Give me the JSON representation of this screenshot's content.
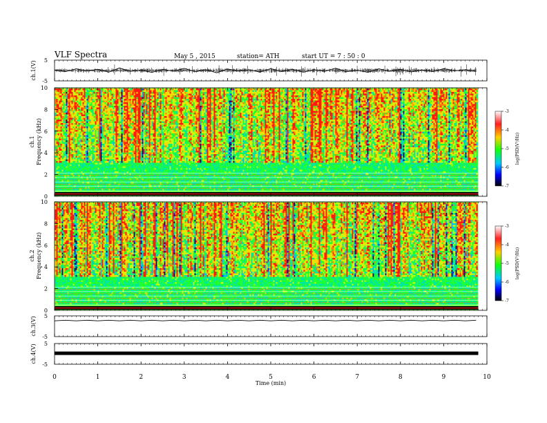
{
  "header": {
    "title": "VLF Spectra",
    "date": "May 5 , 2015",
    "station": "station= ATH",
    "start": "start UT = 7 : 50 : 0"
  },
  "colorbar": {
    "label": "log(PSD(V²/Hz)",
    "ticks": [
      "-3",
      "-4",
      "-5",
      "-6",
      "-7"
    ],
    "colors": [
      "#ffffff",
      "#ff2020",
      "#ffd000",
      "#10ff10",
      "#0080ff",
      "#0000ff",
      "#000000"
    ]
  },
  "chart_data": [
    {
      "type": "line",
      "ylabel": "ch.1(V)",
      "ylim": [
        -5,
        5
      ],
      "yticks": [
        "5",
        "-5"
      ],
      "x": [
        0,
        0.25,
        0.5,
        0.75,
        1,
        1.25,
        1.5,
        1.75,
        2,
        2.25,
        2.5,
        2.75,
        3,
        3.25,
        3.5,
        3.75,
        4,
        4.25,
        4.5,
        4.75,
        5,
        5.25,
        5.5,
        5.75,
        6,
        6.25,
        6.5,
        6.75,
        7,
        7.25,
        7.5,
        7.75,
        8,
        8.25,
        8.5,
        8.75,
        9,
        9.25,
        9.5,
        9.75
      ],
      "values": [
        0.3,
        -0.5,
        0.8,
        -0.2,
        0.6,
        -0.8,
        1.2,
        -0.4,
        0.2,
        -0.9,
        0.5,
        -0.3,
        1.0,
        -0.6,
        0.4,
        -1.1,
        0.7,
        -0.2,
        0.3,
        -0.7,
        0.9,
        -0.5,
        0.6,
        -0.8,
        0.4,
        -0.3,
        1.1,
        -0.6,
        0.2,
        -0.9,
        0.8,
        -0.4,
        0.5,
        -0.7,
        0.3,
        -0.5,
        0.9,
        -0.2,
        0.4,
        -0.3
      ]
    },
    {
      "type": "heatmap",
      "ylabel": "ch.1",
      "ylabel2": "Frequency (kHz)",
      "ylim": [
        0,
        10
      ],
      "yticks": [
        "0",
        "2",
        "4",
        "6",
        "8",
        "10"
      ],
      "xlim": [
        0,
        10
      ]
    },
    {
      "type": "heatmap",
      "ylabel": "ch.2",
      "ylabel2": "Frequency (kHz)",
      "ylim": [
        0,
        10
      ],
      "yticks": [
        "0",
        "2",
        "4",
        "6",
        "8",
        "10"
      ],
      "xlim": [
        0,
        10
      ]
    },
    {
      "type": "line",
      "ylabel": "ch.3(V)",
      "ylim": [
        -5,
        5
      ],
      "yticks": [
        "5",
        "-5"
      ],
      "x": [
        0,
        0.25,
        0.5,
        0.75,
        1,
        1.25,
        1.5,
        1.75,
        2,
        2.25,
        2.5,
        2.75,
        3,
        3.25,
        3.5,
        3.75,
        4,
        4.25,
        4.5,
        4.75,
        5,
        5.25,
        5.5,
        5.75,
        6,
        6.25,
        6.5,
        6.75,
        7,
        7.25,
        7.5,
        7.75,
        8,
        8.25,
        8.5,
        8.75,
        9,
        9.25,
        9.5,
        9.75
      ],
      "values": [
        2.6,
        2.9,
        2.6,
        2.9,
        2.6,
        2.9,
        2.6,
        2.9,
        2.6,
        2.9,
        2.6,
        2.9,
        2.6,
        2.9,
        2.6,
        2.9,
        2.6,
        2.9,
        2.6,
        2.9,
        2.6,
        2.9,
        2.6,
        2.9,
        2.6,
        2.9,
        2.6,
        2.9,
        2.6,
        2.9,
        2.6,
        2.9,
        2.6,
        2.9,
        2.6,
        2.9,
        2.6,
        2.9,
        2.6,
        2.9
      ]
    },
    {
      "type": "line",
      "ylabel": "ch.4(V)",
      "ylim": [
        -5,
        5
      ],
      "yticks": [
        "5",
        "-5"
      ],
      "x": [
        0,
        9.8
      ],
      "values": [
        0.3,
        0.3
      ]
    }
  ],
  "xaxis": {
    "label": "Time (min)",
    "ticks": [
      "0",
      "1",
      "2",
      "3",
      "4",
      "5",
      "6",
      "7",
      "8",
      "9",
      "10"
    ]
  }
}
